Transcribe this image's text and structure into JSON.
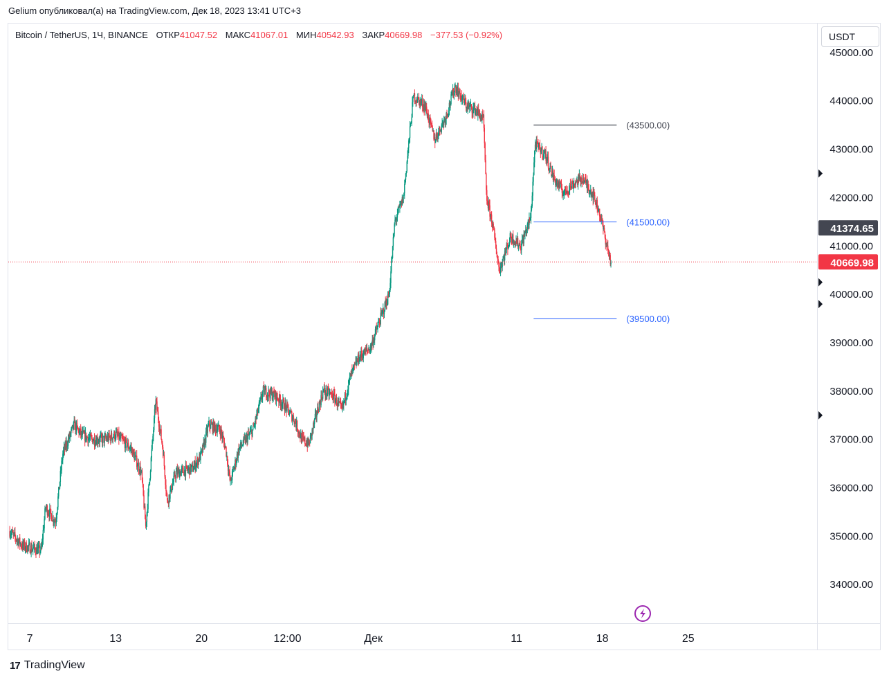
{
  "header": {
    "published_text": "Gelium опубликовал(а) на TradingView.com, Дек 18, 2023 13:41 UTC+3"
  },
  "legend": {
    "symbol": "Bitcoin / TetherUS, 1Ч, BINANCE",
    "open_label": "ОТКР",
    "open_value": "41047.52",
    "high_label": "МАКС",
    "high_value": "41067.01",
    "low_label": "МИН",
    "low_value": "40542.93",
    "close_label": "ЗАКР",
    "close_value": "40669.98",
    "change_value": "−377.53 (−0.92%)"
  },
  "currency_button": "USDT",
  "brand": {
    "logo": "17",
    "name": "TradingView"
  },
  "colors": {
    "up": "#089981",
    "down": "#f23645",
    "line_black": "#131722",
    "line_blue": "#2962ff",
    "label_dark": "#434651",
    "price_red": "#f23645",
    "axis_text": "#131722",
    "flash_icon": "#9c27b0"
  },
  "chart_data": {
    "type": "candlestick",
    "symbol": "Bitcoin / TetherUS",
    "interval": "1Ч",
    "ylim": [
      33200,
      45600
    ],
    "y_ticks": [
      34000,
      35000,
      36000,
      37000,
      38000,
      39000,
      40000,
      41000,
      42000,
      43000,
      44000,
      45000
    ],
    "y_tick_labels": [
      "34000.00",
      "35000.00",
      "36000.00",
      "37000.00",
      "38000.00",
      "39000.00",
      "40000.00",
      "41000.00",
      "42000.00",
      "43000.00",
      "44000.00",
      "45000.00"
    ],
    "x_tick_labels": [
      "7",
      "13",
      "20",
      "12:00",
      "Дек",
      "11",
      "18",
      "25"
    ],
    "x_tick_days": [
      7,
      13,
      19,
      25,
      31,
      41,
      47,
      53
    ],
    "x_range_days": [
      5.5,
      62
    ],
    "price_path": [
      [
        5.6,
        35100
      ],
      [
        6.5,
        34800
      ],
      [
        7.8,
        34700
      ],
      [
        8.1,
        35600
      ],
      [
        8.8,
        35300
      ],
      [
        9.3,
        36700
      ],
      [
        9.7,
        37000
      ],
      [
        10.1,
        37300
      ],
      [
        10.6,
        37100
      ],
      [
        11.3,
        37000
      ],
      [
        12.3,
        37000
      ],
      [
        13.0,
        37100
      ],
      [
        14.1,
        36800
      ],
      [
        14.8,
        36300
      ],
      [
        15.1,
        35200
      ],
      [
        15.8,
        37800
      ],
      [
        16.3,
        36800
      ],
      [
        16.6,
        35700
      ],
      [
        17.2,
        36300
      ],
      [
        18.4,
        36400
      ],
      [
        19.0,
        36700
      ],
      [
        19.5,
        37300
      ],
      [
        20.3,
        37200
      ],
      [
        20.7,
        36800
      ],
      [
        21.0,
        36100
      ],
      [
        21.6,
        36800
      ],
      [
        22.1,
        37000
      ],
      [
        22.6,
        37200
      ],
      [
        23.3,
        38000
      ],
      [
        24.2,
        37900
      ],
      [
        24.8,
        37700
      ],
      [
        25.5,
        37400
      ],
      [
        26.0,
        37000
      ],
      [
        26.5,
        36900
      ],
      [
        27.0,
        37500
      ],
      [
        27.5,
        38000
      ],
      [
        28.2,
        37900
      ],
      [
        28.8,
        37600
      ],
      [
        29.4,
        38300
      ],
      [
        30.0,
        38700
      ],
      [
        30.8,
        38900
      ],
      [
        31.5,
        39500
      ],
      [
        32.1,
        40000
      ],
      [
        32.5,
        41500
      ],
      [
        33.1,
        42000
      ],
      [
        33.8,
        44100
      ],
      [
        34.6,
        43900
      ],
      [
        35.3,
        43200
      ],
      [
        36.1,
        43700
      ],
      [
        36.7,
        44300
      ],
      [
        37.5,
        43900
      ],
      [
        38.2,
        43800
      ],
      [
        38.7,
        43600
      ],
      [
        38.9,
        42000
      ],
      [
        39.3,
        41500
      ],
      [
        39.8,
        40500
      ],
      [
        40.6,
        41200
      ],
      [
        41.3,
        41000
      ],
      [
        42.0,
        41600
      ],
      [
        42.3,
        43100
      ],
      [
        43.0,
        42900
      ],
      [
        43.6,
        42400
      ],
      [
        44.3,
        42100
      ],
      [
        45.0,
        42300
      ],
      [
        45.6,
        42400
      ],
      [
        46.3,
        42100
      ],
      [
        46.8,
        41700
      ],
      [
        47.4,
        40900
      ],
      [
        47.6,
        40670
      ]
    ],
    "last_close": 40669.98,
    "current_price_tag": 41374.65,
    "current_price_label": "41374.65",
    "last_close_label": "40669.98",
    "horizontal_lines": [
      {
        "price": 43500,
        "label": "(43500.00)",
        "color": "black",
        "x_start_day": 42.2,
        "x_end_day": 48.0
      },
      {
        "price": 41500,
        "label": "(41500.00)",
        "color": "blue",
        "x_start_day": 42.2,
        "x_end_day": 48.0
      },
      {
        "price": 39500,
        "label": "(39500.00)",
        "color": "blue",
        "x_start_day": 42.2,
        "x_end_day": 48.0
      }
    ],
    "axis_markers_prices": [
      42500,
      40250,
      39800,
      37500
    ]
  }
}
